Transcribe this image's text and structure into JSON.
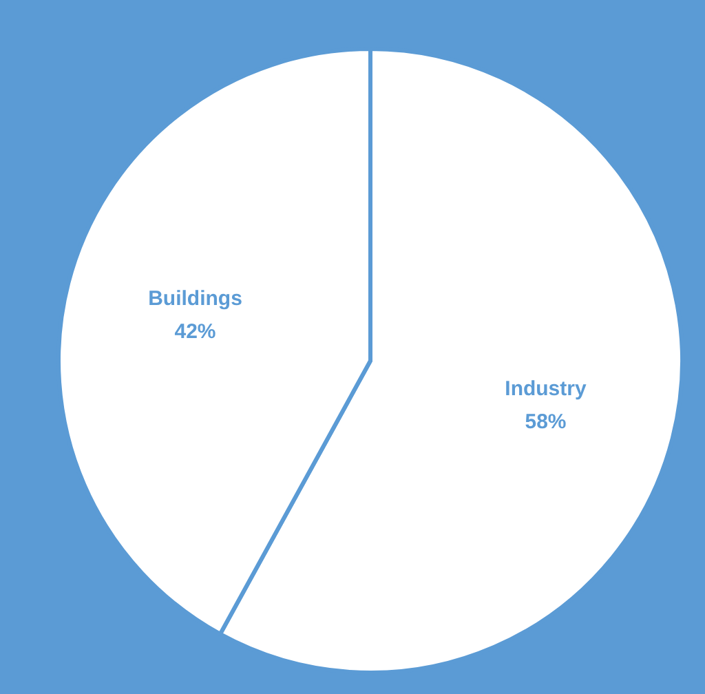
{
  "chart_data": {
    "type": "pie",
    "categories": [
      "Industry",
      "Buildings"
    ],
    "values": [
      58,
      42
    ],
    "colors": [
      "#ffffff",
      "#ffffff"
    ],
    "value_labels": [
      "58%",
      "42%"
    ],
    "legend": false
  }
}
